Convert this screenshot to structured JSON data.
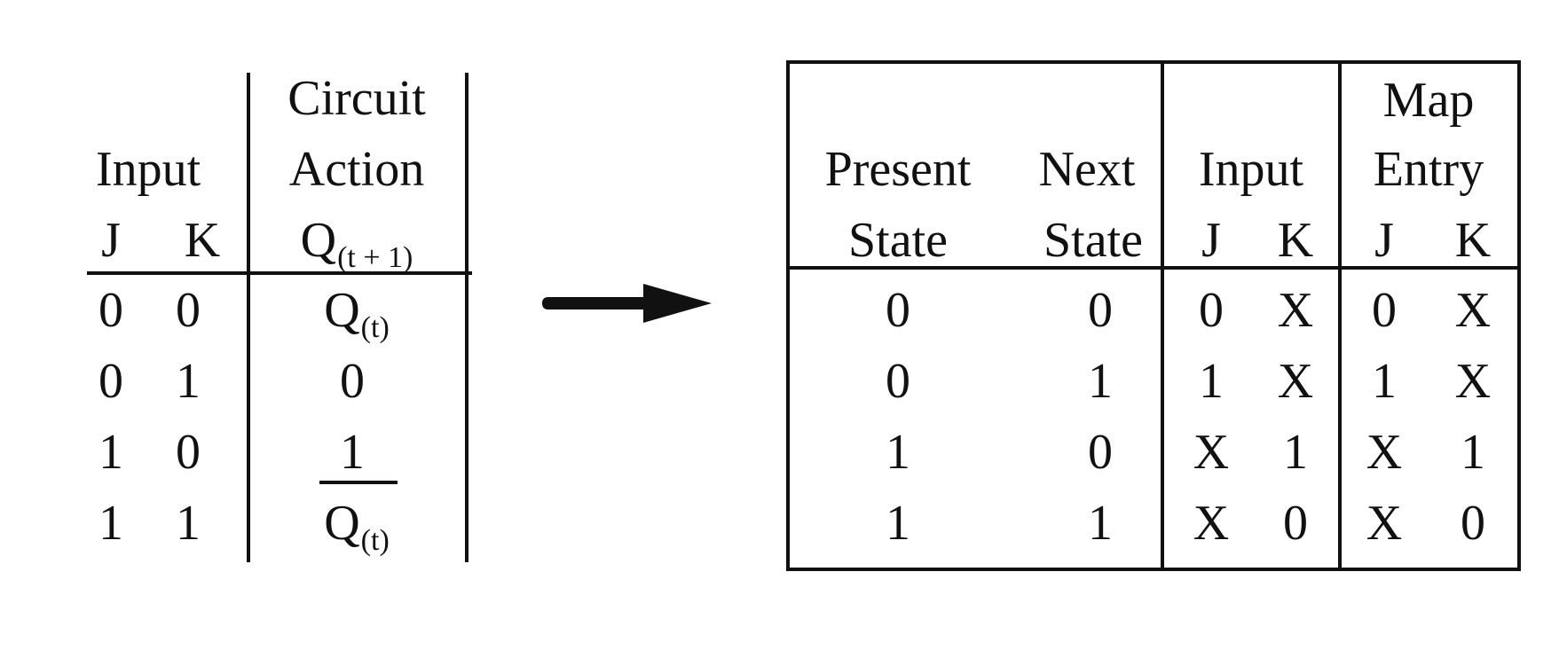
{
  "truth_table": {
    "header": {
      "input_label": "Input",
      "col_j": "J",
      "col_k": "K",
      "action_line1": "Circuit",
      "action_line2": "Action",
      "next_q": "Q",
      "next_q_sub": "(t + 1)"
    },
    "rows": [
      {
        "j": "0",
        "k": "0",
        "q": "Q",
        "q_sub": "(t)",
        "bar": false
      },
      {
        "j": "0",
        "k": "1",
        "q": "0",
        "q_sub": "",
        "bar": false
      },
      {
        "j": "1",
        "k": "0",
        "q": "1",
        "q_sub": "",
        "bar": false
      },
      {
        "j": "1",
        "k": "1",
        "q": "Q",
        "q_sub": "(t)",
        "bar": true
      }
    ]
  },
  "arrow": {
    "icon": "right-arrow-icon"
  },
  "excitation_table": {
    "header": {
      "present_line1": "Present",
      "present_line2": "State",
      "next_line1": "Next",
      "next_line2": "State",
      "input_label": "Input",
      "input_j": "J",
      "input_k": "K",
      "map_line1": "Map",
      "map_line2": "Entry",
      "map_j": "J",
      "map_k": "K"
    },
    "rows": [
      {
        "present": "0",
        "next": "0",
        "j": "0",
        "k": "X",
        "map_j": "0",
        "map_k": "X"
      },
      {
        "present": "0",
        "next": "1",
        "j": "1",
        "k": "X",
        "map_j": "1",
        "map_k": "X"
      },
      {
        "present": "1",
        "next": "0",
        "j": "X",
        "k": "1",
        "map_j": "X",
        "map_k": "1"
      },
      {
        "present": "1",
        "next": "1",
        "j": "X",
        "k": "0",
        "map_j": "X",
        "map_k": "0"
      }
    ]
  }
}
